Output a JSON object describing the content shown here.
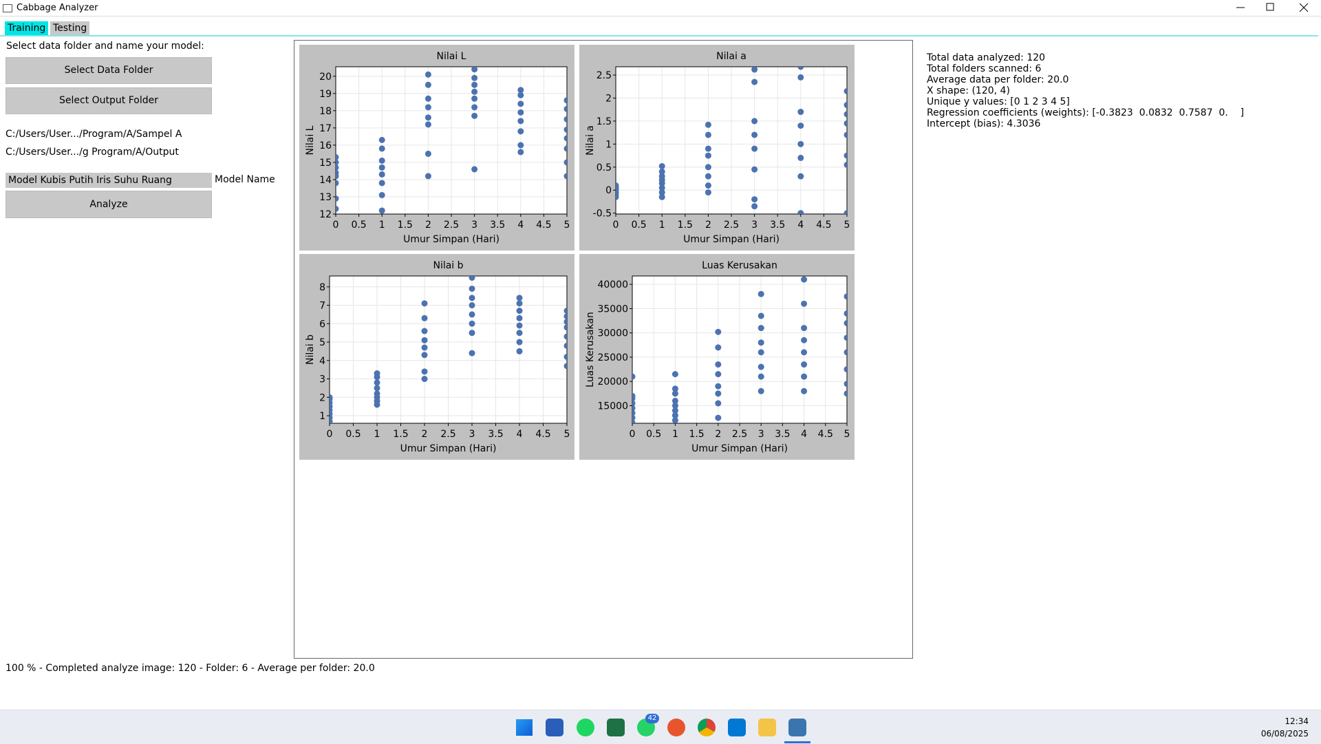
{
  "window": {
    "title": "Cabbage Analyzer"
  },
  "tabs": [
    "Training",
    "Testing"
  ],
  "left_panel": {
    "prompt": "Select data folder and name your model:",
    "select_data_button": "Select Data Folder",
    "select_output_button": "Select Output Folder",
    "data_path": "C:/Users/User.../Program/A/Sampel A",
    "output_path": "C:/Users/User.../g Program/A/Output",
    "model_name_value": "Model Kubis Putih Iris Suhu Ruang",
    "model_name_label": "Model Name",
    "analyze_button": "Analyze"
  },
  "info_panel": [
    "Total data analyzed: 120",
    "Total folders scanned: 6",
    "Average data per folder: 20.0",
    "X shape: (120, 4)",
    "Unique y values: [0 1 2 3 4 5]",
    "Regression coefficients (weights): [-0.3823  0.0832  0.7587  0.    ]",
    "Intercept (bias): 4.3036"
  ],
  "status": "100 % - Completed analyze image: 120 - Folder: 6 - Average per folder: 20.0",
  "taskbar": {
    "badge": "42",
    "time": "12:34",
    "date": "06/08/2025"
  },
  "chart_data": [
    {
      "type": "scatter",
      "title": "Nilai L",
      "xlabel": "Umur Simpan (Hari)",
      "ylabel": "Nilai L",
      "color": "#4c72b0",
      "grid": true,
      "x": [
        0,
        0,
        0,
        0,
        0,
        0,
        0,
        0,
        1,
        1,
        1,
        1,
        1,
        1,
        1,
        1,
        2,
        2,
        2,
        2,
        2,
        2,
        2,
        2,
        3,
        3,
        3,
        3,
        3,
        3,
        3,
        3,
        4,
        4,
        4,
        4,
        4,
        4,
        4,
        4,
        5,
        5,
        5,
        5,
        5,
        5,
        5,
        5
      ],
      "values": [
        12.3,
        12.9,
        13.8,
        14.2,
        14.4,
        14.7,
        15.0,
        15.3,
        12.2,
        13.1,
        13.8,
        14.3,
        14.7,
        15.1,
        15.8,
        16.3,
        14.2,
        15.5,
        17.2,
        17.6,
        18.2,
        18.7,
        19.5,
        20.1,
        14.6,
        17.7,
        18.2,
        18.7,
        19.1,
        19.5,
        19.9,
        20.4,
        15.6,
        16.0,
        16.8,
        17.4,
        17.9,
        18.4,
        18.9,
        19.2,
        14.2,
        15.0,
        15.8,
        16.4,
        16.9,
        17.5,
        18.1,
        18.6
      ],
      "xlim": [
        0,
        5
      ],
      "xticks": [
        0,
        0.5,
        1,
        1.5,
        2,
        2.5,
        3,
        3.5,
        4,
        4.5,
        5
      ],
      "ylim": [
        12,
        20.55
      ],
      "yticks": [
        12,
        13,
        14,
        15,
        16,
        17,
        18,
        19,
        20
      ]
    },
    {
      "type": "scatter",
      "title": "Nilai a",
      "xlabel": "Umur Simpan (Hari)",
      "ylabel": "Nilai a",
      "color": "#4c72b0",
      "grid": true,
      "x": [
        0,
        0,
        0,
        0,
        0,
        0,
        0,
        0,
        1,
        1,
        1,
        1,
        1,
        1,
        1,
        1,
        2,
        2,
        2,
        2,
        2,
        2,
        2,
        2,
        3,
        3,
        3,
        3,
        3,
        3,
        3,
        3,
        4,
        4,
        4,
        4,
        4,
        4,
        4,
        4,
        5,
        5,
        5,
        5,
        5,
        5,
        5,
        5
      ],
      "values": [
        -0.15,
        -0.1,
        -0.05,
        0,
        0.02,
        0.05,
        0.08,
        0.1,
        -0.15,
        -0.05,
        0.05,
        0.15,
        0.22,
        0.3,
        0.4,
        0.52,
        -0.05,
        0.1,
        0.3,
        0.5,
        0.75,
        0.9,
        1.2,
        1.42,
        -0.35,
        -0.2,
        0.45,
        0.9,
        1.2,
        1.5,
        2.35,
        2.62,
        -0.5,
        0.3,
        0.7,
        1.0,
        1.4,
        1.7,
        2.45,
        2.68,
        -0.5,
        0.55,
        0.75,
        1.2,
        1.45,
        1.65,
        1.85,
        2.15
      ],
      "xlim": [
        0,
        5
      ],
      "xticks": [
        0,
        0.5,
        1,
        1.5,
        2,
        2.5,
        3,
        3.5,
        4,
        4.5,
        5
      ],
      "ylim": [
        -0.52,
        2.68
      ],
      "yticks": [
        -0.5,
        0,
        0.5,
        1,
        1.5,
        2,
        2.5
      ]
    },
    {
      "type": "scatter",
      "title": "Nilai b",
      "xlabel": "Umur Simpan (Hari)",
      "ylabel": "Nilai b",
      "color": "#4c72b0",
      "grid": true,
      "x": [
        0,
        0,
        0,
        0,
        0,
        0,
        0,
        0,
        1,
        1,
        1,
        1,
        1,
        1,
        1,
        1,
        2,
        2,
        2,
        2,
        2,
        2,
        2,
        2,
        3,
        3,
        3,
        3,
        3,
        3,
        3,
        3,
        4,
        4,
        4,
        4,
        4,
        4,
        4,
        4,
        5,
        5,
        5,
        5,
        5,
        5,
        5,
        5
      ],
      "values": [
        0.7,
        0.9,
        1.1,
        1.3,
        1.5,
        1.7,
        1.9,
        2.0,
        1.6,
        1.8,
        2.0,
        2.2,
        2.5,
        2.8,
        3.1,
        3.3,
        3.0,
        3.4,
        4.3,
        4.7,
        5.1,
        5.6,
        6.3,
        7.1,
        4.4,
        5.5,
        6.0,
        6.5,
        7.0,
        7.4,
        7.9,
        8.5,
        4.5,
        5.0,
        5.5,
        5.9,
        6.3,
        6.7,
        7.1,
        7.4,
        3.7,
        4.2,
        4.8,
        5.3,
        5.8,
        6.1,
        6.4,
        6.7
      ],
      "xlim": [
        0,
        5
      ],
      "xticks": [
        0,
        0.5,
        1,
        1.5,
        2,
        2.5,
        3,
        3.5,
        4,
        4.5,
        5
      ],
      "ylim": [
        0.59,
        8.59
      ],
      "yticks": [
        1,
        2,
        3,
        4,
        5,
        6,
        7,
        8
      ]
    },
    {
      "type": "scatter",
      "title": "Luas Kerusakan",
      "xlabel": "Umur Simpan (Hari)",
      "ylabel": "Luas Kerusakan",
      "color": "#4c72b0",
      "grid": true,
      "x": [
        0,
        0,
        0,
        0,
        0,
        0,
        0,
        0,
        1,
        1,
        1,
        1,
        1,
        1,
        1,
        1,
        2,
        2,
        2,
        2,
        2,
        2,
        2,
        2,
        3,
        3,
        3,
        3,
        3,
        3,
        3,
        3,
        4,
        4,
        4,
        4,
        4,
        4,
        4,
        4,
        5,
        5,
        5,
        5,
        5,
        5,
        5,
        5
      ],
      "values": [
        11500,
        12500,
        13500,
        14500,
        15500,
        16500,
        17000,
        21000,
        12000,
        13000,
        14000,
        15000,
        16000,
        17500,
        18500,
        21500,
        12500,
        15500,
        17500,
        19000,
        21500,
        23500,
        27000,
        30200,
        18000,
        21000,
        23000,
        26000,
        28000,
        31000,
        33500,
        38000,
        18000,
        21000,
        23500,
        26000,
        28500,
        31000,
        36000,
        41000,
        17500,
        19500,
        22500,
        26000,
        29000,
        32000,
        34000,
        37500
      ],
      "xlim": [
        0,
        5
      ],
      "xticks": [
        0,
        0.5,
        1,
        1.5,
        2,
        2.5,
        3,
        3.5,
        4,
        4.5,
        5
      ],
      "ylim": [
        11380,
        41720
      ],
      "yticks": [
        15000,
        20000,
        25000,
        30000,
        35000,
        40000
      ]
    }
  ]
}
